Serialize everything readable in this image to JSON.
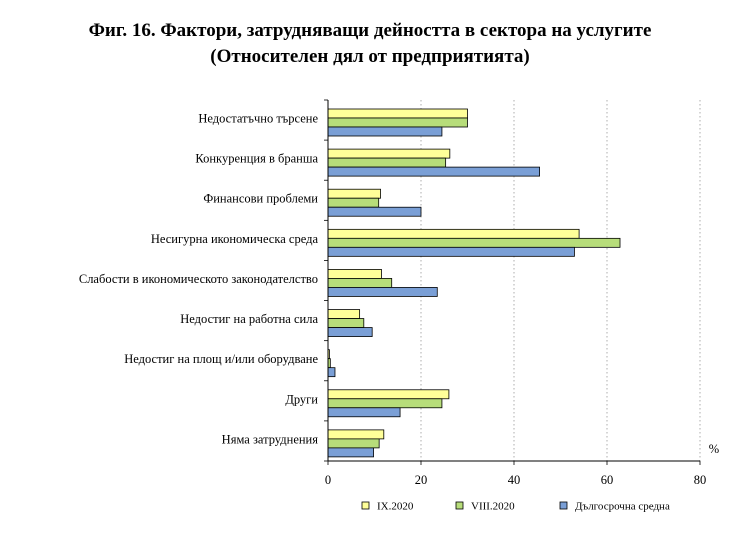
{
  "chart_data": {
    "type": "bar",
    "orientation": "horizontal",
    "title": "Фиг. 16. Фактори, затрудняващи дейността в сектора на услугите",
    "subtitle": "(Относителен дял от предприятията)",
    "unit_label": "%",
    "categories": [
      "Недостатъчно търсене",
      "Конкуренция в бранша",
      "Финансови проблеми",
      "Несигурна икономическа среда",
      "Слабости в икономическото законодателство",
      "Недостиг на работна сила",
      "Недостиг на площ и/или оборудване",
      "Други",
      "Няма затруднения"
    ],
    "series": [
      {
        "name": "IX.2020",
        "color": "#ffff99",
        "values": [
          30.0,
          26.2,
          11.3,
          54.0,
          11.5,
          6.8,
          0.3,
          26.0,
          12.0
        ]
      },
      {
        "name": "VIII.2020",
        "color": "#b7dd7a",
        "values": [
          30.0,
          25.3,
          10.9,
          62.8,
          13.7,
          7.7,
          0.5,
          24.5,
          11.0
        ]
      },
      {
        "name": "Дългосрочна средна",
        "color": "#7a9fd6",
        "values": [
          24.5,
          45.5,
          20.0,
          53.0,
          23.5,
          9.5,
          1.5,
          15.5,
          9.8
        ]
      }
    ],
    "x_ticks": [
      "0",
      "20",
      "40",
      "60",
      "80"
    ],
    "xlim": [
      0,
      80
    ],
    "grid": "vertical dotted",
    "legend": "bottom"
  }
}
